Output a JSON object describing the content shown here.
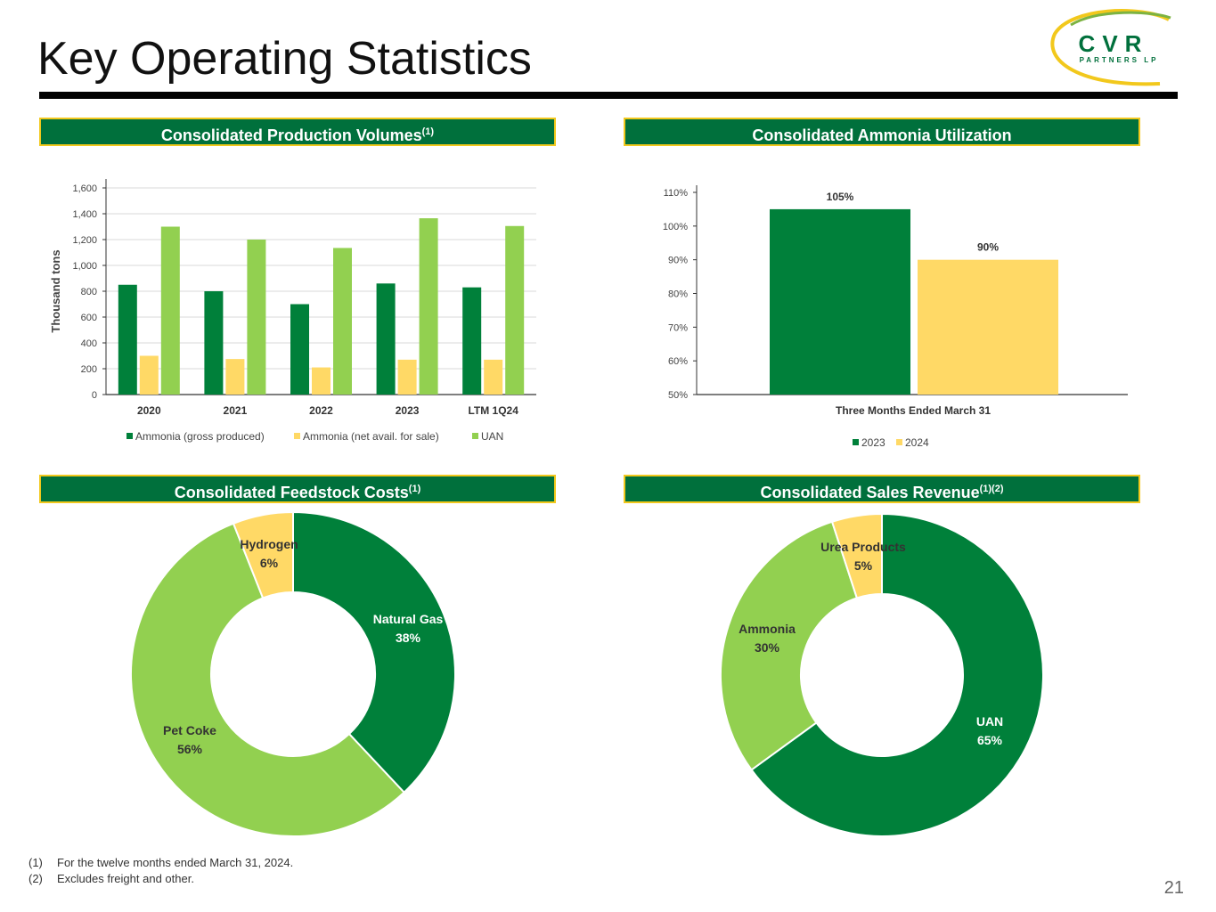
{
  "slide": {
    "title": "Key Operating Statistics",
    "page_number": "21",
    "logo": {
      "main": "CVR",
      "sub": "PARTNERS LP"
    }
  },
  "panels": {
    "production": {
      "title": "Consolidated Production Volumes",
      "sup": "(1)"
    },
    "utilization": {
      "title": "Consolidated Ammonia Utilization",
      "sup": ""
    },
    "feedstock": {
      "title": "Consolidated Feedstock Costs",
      "sup": "(1)"
    },
    "revenue": {
      "title": "Consolidated Sales Revenue",
      "sup": "(1)(2)"
    }
  },
  "footnotes": [
    {
      "num": "(1)",
      "text": "For the twelve months ended March 31, 2024."
    },
    {
      "num": "(2)",
      "text": "Excludes freight and other."
    }
  ],
  "colors": {
    "dark_green": "#00803a",
    "light_green": "#92d050",
    "yellow": "#ffd966",
    "header_green": "#00703c",
    "header_border": "#f2c81c"
  },
  "chart_data": [
    {
      "id": "production",
      "type": "bar",
      "title": "Consolidated Production Volumes",
      "ylabel": "Thousand tons",
      "xlabel": "",
      "ylim": [
        0,
        1600
      ],
      "yticks": [
        0,
        200,
        400,
        600,
        800,
        1000,
        1200,
        1400,
        1600
      ],
      "ytick_labels": [
        "0",
        "200",
        "400",
        "600",
        "800",
        "1,000",
        "1,200",
        "1,400",
        "1,600"
      ],
      "grid": true,
      "categories": [
        "2020",
        "2021",
        "2022",
        "2023",
        "LTM 1Q24"
      ],
      "series": [
        {
          "name": "Ammonia (gross produced)",
          "color": "#00803a",
          "values": [
            850,
            800,
            700,
            860,
            830
          ]
        },
        {
          "name": "Ammonia (net avail. for sale)",
          "color": "#ffd966",
          "values": [
            300,
            275,
            210,
            270,
            270
          ]
        },
        {
          "name": "UAN",
          "color": "#92d050",
          "values": [
            1300,
            1200,
            1135,
            1365,
            1305
          ]
        }
      ],
      "legend": "bottom"
    },
    {
      "id": "utilization",
      "type": "bar",
      "title": "Consolidated Ammonia Utilization",
      "ylim": [
        50,
        110
      ],
      "yticks": [
        50,
        60,
        70,
        80,
        90,
        100,
        110
      ],
      "ytick_labels": [
        "50%",
        "60%",
        "70%",
        "80%",
        "90%",
        "100%",
        "110%"
      ],
      "grid": false,
      "categories": [
        "Three Months Ended March 31"
      ],
      "series": [
        {
          "name": "2023",
          "color": "#00803a",
          "values": [
            105
          ],
          "label": "105%"
        },
        {
          "name": "2024",
          "color": "#ffd966",
          "values": [
            90
          ],
          "label": "90%"
        }
      ],
      "legend": "bottom"
    },
    {
      "id": "feedstock",
      "type": "pie",
      "donut": true,
      "title": "Consolidated Feedstock Costs",
      "slices": [
        {
          "name": "Natural Gas",
          "value": 38,
          "label": "38%",
          "color": "#00803a",
          "text_color": "#ffffff"
        },
        {
          "name": "Pet Coke",
          "value": 56,
          "label": "56%",
          "color": "#92d050",
          "text_color": "#333333"
        },
        {
          "name": "Hydrogen",
          "value": 6,
          "label": "6%",
          "color": "#ffd966",
          "text_color": "#333333"
        }
      ]
    },
    {
      "id": "revenue",
      "type": "pie",
      "donut": true,
      "title": "Consolidated Sales Revenue",
      "slices": [
        {
          "name": "UAN",
          "value": 65,
          "label": "65%",
          "color": "#00803a",
          "text_color": "#ffffff"
        },
        {
          "name": "Ammonia",
          "value": 30,
          "label": "30%",
          "color": "#92d050",
          "text_color": "#333333"
        },
        {
          "name": "Urea Products",
          "value": 5,
          "label": "5%",
          "color": "#ffd966",
          "text_color": "#333333"
        }
      ]
    }
  ]
}
